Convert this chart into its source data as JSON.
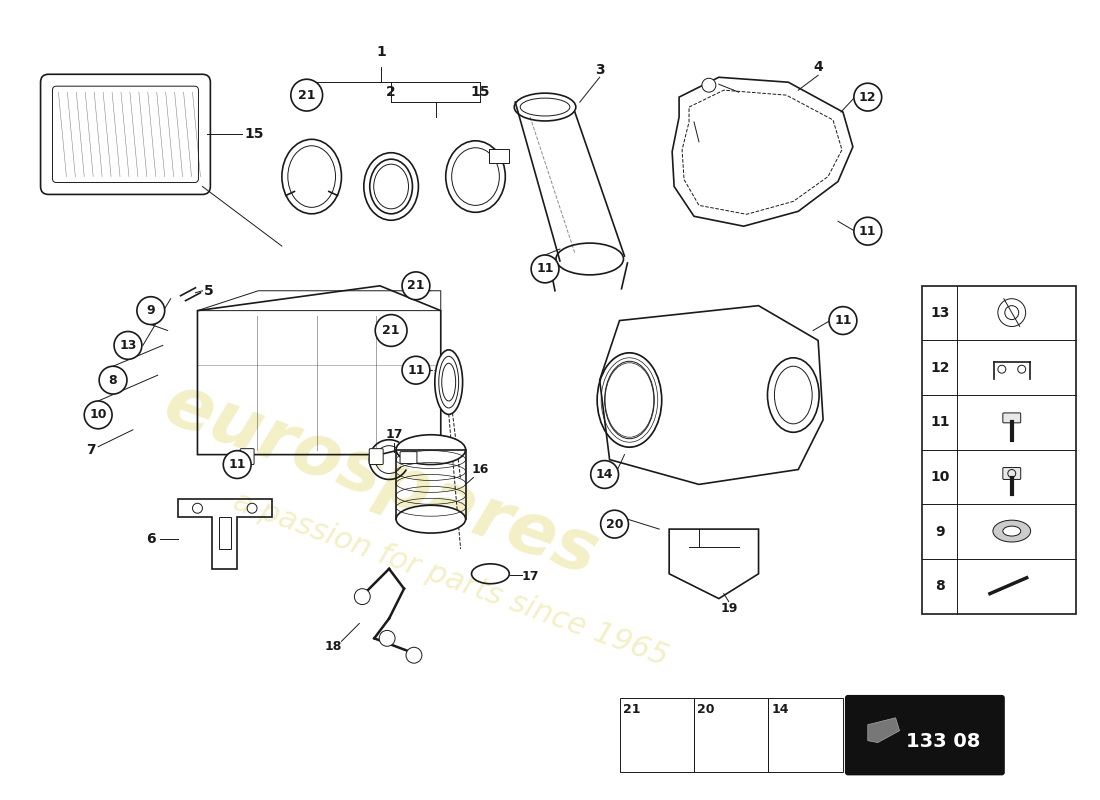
{
  "background_color": "#ffffff",
  "line_color": "#1a1a1a",
  "watermark_text1": "eurospares",
  "watermark_text2": "a passion for parts since 1965",
  "watermark_color": "#d4c832",
  "watermark_alpha": 0.28,
  "part_number_box": "133 08",
  "part_number_box_bg": "#000000",
  "part_number_box_fg": "#ffffff",
  "parts_legend": [
    {
      "num": 13
    },
    {
      "num": 12
    },
    {
      "num": 11
    },
    {
      "num": 10
    },
    {
      "num": 9
    },
    {
      "num": 8
    }
  ],
  "bottom_legend": [
    {
      "num": 21
    },
    {
      "num": 20
    },
    {
      "num": 14
    }
  ],
  "fig_width": 11.0,
  "fig_height": 8.0
}
